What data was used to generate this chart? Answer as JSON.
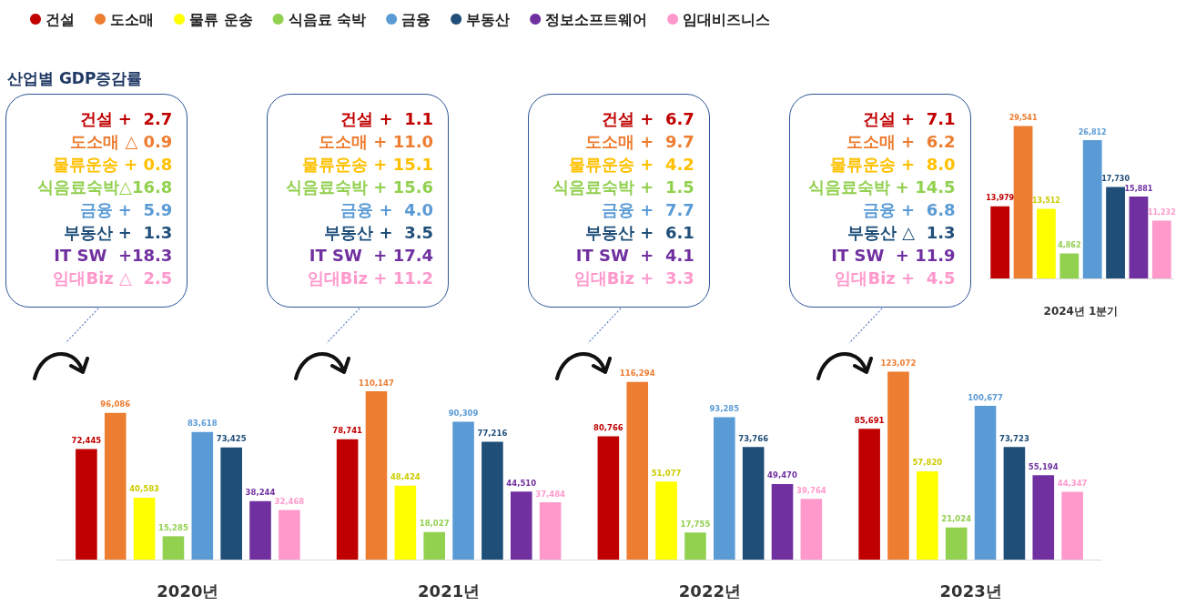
{
  "chart_data": [
    {
      "type": "other",
      "title": "산업별 GDP증감률",
      "annotations": [
        "건설 +  2.7",
        "도소매 △ 0.9",
        "물류운송 + 0.8",
        "식음료숙박△16.8",
        "금융 +  5.9",
        "부동산 +  1.3",
        "IT SW  +18.3",
        "임대Biz △  2.5",
        "건설 +  1.1",
        "도소매 + 11.0",
        "물류운송 + 15.1",
        "식음료숙박 + 15.6",
        "금융 +  4.0",
        "부동산 +  3.5",
        "IT SW  + 17.4",
        "임대Biz + 11.2",
        "건설 +  6.7",
        "도소매 +  9.7",
        "물류운송 +  4.2",
        "식음료숙박 +  1.5",
        "금융 +  7.7",
        "부동산 +  6.1",
        "IT SW  +  4.1",
        "임대Biz +  3.3",
        "건설 +  7.1",
        "도소매 +  6.2",
        "물류운송 +  8.0",
        "식음료숙박 + 14.5",
        "금융 +  6.8",
        "부동산 △  1.3",
        "IT SW  + 11.9",
        "임대Biz +  4.5"
      ]
    },
    {
      "type": "bar",
      "categories": [
        "2020년",
        "2021년",
        "2022년",
        "2023년"
      ],
      "series": [
        {
          "name": "건설",
          "color": "#c00000",
          "values": [
            72445,
            78741,
            80766,
            85691
          ],
          "value_labels": [
            "72,445",
            "78,741",
            "80,766",
            "85,691"
          ]
        },
        {
          "name": "도소매",
          "color": "#ed7d31",
          "values": [
            96086,
            110147,
            116294,
            123072
          ],
          "value_labels": [
            "96,086",
            "110,147",
            "116,294",
            "123,072"
          ]
        },
        {
          "name": "물류 운송",
          "color": "#ffff00",
          "values": [
            40583,
            48424,
            51077,
            57820
          ],
          "value_labels": [
            "40,583",
            "48,424",
            "51,077",
            "57,820"
          ]
        },
        {
          "name": "식음료 숙박",
          "color": "#92d050",
          "values": [
            15285,
            18027,
            17755,
            21024
          ],
          "value_labels": [
            "15,285",
            "18,027",
            "17,755",
            "21,024"
          ]
        },
        {
          "name": "금융",
          "color": "#5b9bd5",
          "values": [
            83618,
            90309,
            93285,
            100677
          ],
          "value_labels": [
            "83,618",
            "90,309",
            "93,285",
            "100,677"
          ]
        },
        {
          "name": "부동산",
          "color": "#1f4e79",
          "values": [
            73425,
            77216,
            73766,
            73723
          ],
          "value_labels": [
            "73,425",
            "77,216",
            "73,766",
            "73,723"
          ]
        },
        {
          "name": "정보소프트웨어",
          "color": "#7030a0",
          "values": [
            38244,
            44510,
            49470,
            55194
          ],
          "value_labels": [
            "38,244",
            "44,510",
            "49,470",
            "55,194"
          ]
        },
        {
          "name": "임대비즈니스",
          "color": "#ff99cc",
          "values": [
            32468,
            37484,
            39764,
            44347
          ],
          "value_labels": [
            "32,468",
            "37,484",
            "39,764",
            "44,347"
          ]
        }
      ],
      "legend": "top"
    },
    {
      "type": "bar",
      "xlabel": "2024년 1분기",
      "categories": [
        null,
        null,
        null,
        null,
        null,
        null,
        null,
        null
      ],
      "values": [
        13979,
        29541,
        13512,
        4862,
        26812,
        17730,
        15881,
        11232
      ],
      "value_labels": [
        "13,979",
        "29,541",
        "13,512",
        "4,862",
        "26,812",
        "17,730",
        "15,881",
        "11,232"
      ],
      "colors": [
        "#c00000",
        "#ed7d31",
        "#ffff00",
        "#92d050",
        "#5b9bd5",
        "#1f4e79",
        "#7030a0",
        "#ff99cc"
      ]
    }
  ]
}
